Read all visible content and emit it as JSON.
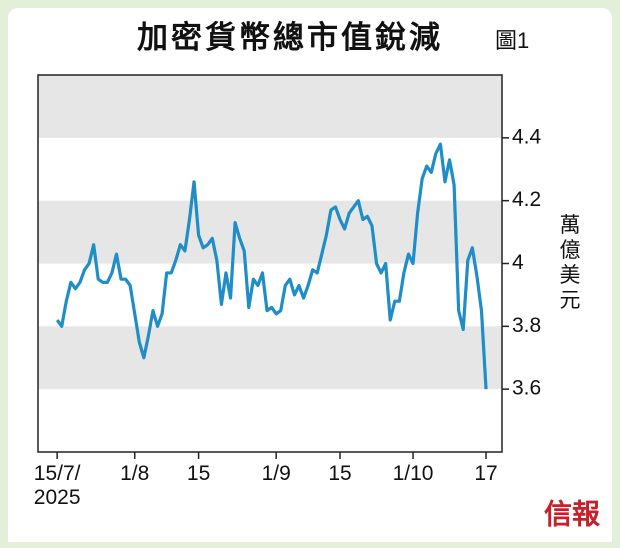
{
  "chart_data": {
    "type": "line",
    "title": "加密貨幣總市值銳減",
    "figure_label": "圖1",
    "y_label": "萬億美元",
    "source": "信報",
    "x": [
      0,
      1,
      2,
      3,
      4,
      5,
      6,
      7,
      8,
      9,
      10,
      11,
      12,
      13,
      14,
      15,
      16,
      17,
      18,
      19,
      20,
      21,
      22,
      23,
      24,
      25,
      26,
      27,
      28,
      29,
      30,
      31,
      32,
      33,
      34,
      35,
      36,
      37,
      38,
      39,
      40,
      41,
      42,
      43,
      44,
      45,
      46,
      47,
      48,
      49,
      50,
      51,
      52,
      53,
      54,
      55,
      56,
      57,
      58,
      59,
      60,
      61,
      62,
      63,
      64,
      65,
      66,
      67,
      68,
      69,
      70,
      71,
      72,
      73,
      74,
      75,
      76,
      77,
      78,
      79,
      80,
      81,
      82,
      83,
      84,
      85,
      86,
      87,
      88,
      89,
      90,
      91,
      92,
      93,
      94
    ],
    "series": [
      {
        "name": "加密貨幣總市值",
        "color": "#1f8dc8",
        "values": [
          3.82,
          3.8,
          3.88,
          3.94,
          3.92,
          3.94,
          3.98,
          4.0,
          4.06,
          3.95,
          3.94,
          3.94,
          3.97,
          4.03,
          3.95,
          3.95,
          3.93,
          3.84,
          3.75,
          3.7,
          3.77,
          3.85,
          3.8,
          3.84,
          3.97,
          3.97,
          4.01,
          4.06,
          4.04,
          4.14,
          4.26,
          4.09,
          4.05,
          4.06,
          4.08,
          4.01,
          3.87,
          3.97,
          3.89,
          4.13,
          4.08,
          4.04,
          3.86,
          3.95,
          3.93,
          3.97,
          3.85,
          3.86,
          3.84,
          3.85,
          3.93,
          3.95,
          3.9,
          3.93,
          3.89,
          3.93,
          3.98,
          3.97,
          4.03,
          4.09,
          4.17,
          4.18,
          4.14,
          4.11,
          4.16,
          4.18,
          4.2,
          4.14,
          4.15,
          4.12,
          4.0,
          3.97,
          4.0,
          3.82,
          3.88,
          3.88,
          3.97,
          4.03,
          4.0,
          4.16,
          4.27,
          4.31,
          4.29,
          4.35,
          4.38,
          4.26,
          4.33,
          4.25,
          3.85,
          3.79,
          4.01,
          4.05,
          3.96,
          3.85,
          3.6
        ]
      }
    ],
    "xlim": [
      -4.2,
      97.5
    ],
    "xticks": [
      {
        "value": 0,
        "label": "15/7/\n2025"
      },
      {
        "value": 17,
        "label": "1/8"
      },
      {
        "value": 31,
        "label": "15"
      },
      {
        "value": 48,
        "label": "1/9"
      },
      {
        "value": 62,
        "label": "15"
      },
      {
        "value": 78,
        "label": "1/10"
      },
      {
        "value": 94,
        "label": "17"
      }
    ],
    "ylim": [
      3.4,
      4.6
    ],
    "yticks": [
      3.6,
      3.8,
      4.0,
      4.2,
      4.4
    ],
    "bands": true
  }
}
